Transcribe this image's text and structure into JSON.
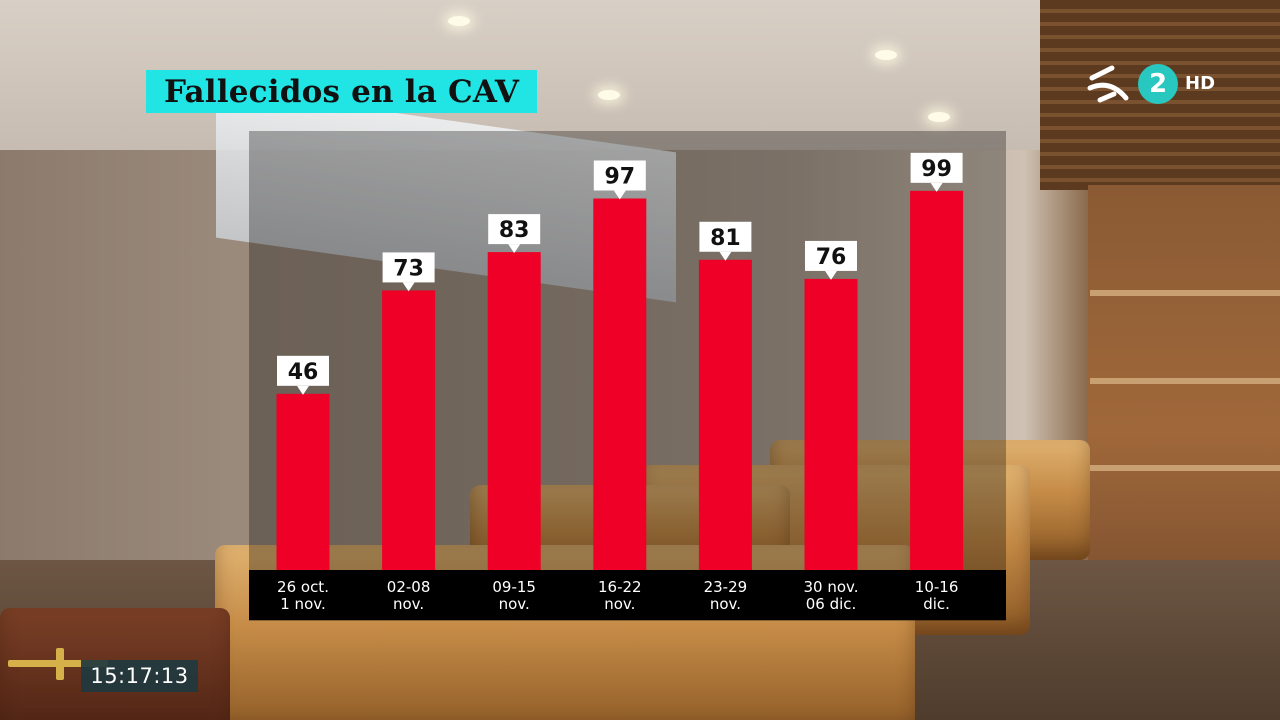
{
  "header": {
    "title": "Fallecidos en la CAV"
  },
  "channel_logo": {
    "number": "2",
    "quality": "HD",
    "accent_color": "#28c8c0"
  },
  "clock": {
    "time": "15:17:13"
  },
  "colors": {
    "bar": "#ef0026",
    "title_bg": "#21e4e4",
    "label_bg": "#ffffff"
  },
  "chart_data": {
    "type": "bar",
    "title": "Fallecidos en la CAV",
    "categories": [
      [
        "26 oct.",
        "1 nov."
      ],
      [
        "02-08",
        "nov."
      ],
      [
        "09-15",
        "nov."
      ],
      [
        "16-22",
        "nov."
      ],
      [
        "23-29",
        "nov."
      ],
      [
        "30 nov.",
        "06 dic."
      ],
      [
        "10-16",
        "dic."
      ]
    ],
    "values": [
      46,
      73,
      83,
      97,
      81,
      76,
      99
    ],
    "ylim": [
      0,
      100
    ],
    "grid": false,
    "legend": "none",
    "data_labels": true
  }
}
